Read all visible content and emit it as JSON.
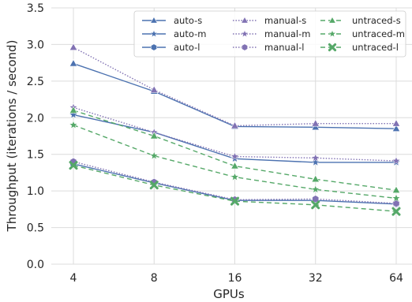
{
  "chart_data": {
    "type": "line",
    "title": "",
    "xlabel": "GPUs",
    "ylabel": "Throughput (iterations / second)",
    "categories": [
      "4",
      "8",
      "16",
      "32",
      "64"
    ],
    "ylim": [
      0.0,
      3.5
    ],
    "yticks": [
      "0.0",
      "0.5",
      "1.0",
      "1.5",
      "2.0",
      "2.5",
      "3.0",
      "3.5"
    ],
    "grid": true,
    "legend_position": "top-right",
    "legend_columns": 3,
    "series": [
      {
        "name": "auto-s",
        "values": [
          2.74,
          2.36,
          1.88,
          1.87,
          1.85
        ],
        "color": "#4c72b0",
        "dash": "solid",
        "marker": "triangle"
      },
      {
        "name": "auto-m",
        "values": [
          2.04,
          1.8,
          1.44,
          1.39,
          1.39
        ],
        "color": "#4c72b0",
        "dash": "solid",
        "marker": "star"
      },
      {
        "name": "auto-l",
        "values": [
          1.37,
          1.11,
          0.87,
          0.87,
          0.82
        ],
        "color": "#4c72b0",
        "dash": "solid",
        "marker": "hexagon"
      },
      {
        "name": "manual-s",
        "values": [
          2.96,
          2.38,
          1.89,
          1.92,
          1.92
        ],
        "color": "#8172b3",
        "dash": "dotted",
        "marker": "triangle"
      },
      {
        "name": "manual-m",
        "values": [
          2.14,
          1.8,
          1.47,
          1.45,
          1.41
        ],
        "color": "#8172b3",
        "dash": "dotted",
        "marker": "star"
      },
      {
        "name": "manual-l",
        "values": [
          1.4,
          1.12,
          0.88,
          0.89,
          0.83
        ],
        "color": "#8172b3",
        "dash": "dotted",
        "marker": "hexagon"
      },
      {
        "name": "untraced-s",
        "values": [
          2.1,
          1.75,
          1.34,
          1.16,
          1.01
        ],
        "color": "#55a868",
        "dash": "dashed",
        "marker": "triangle"
      },
      {
        "name": "untraced-m",
        "values": [
          1.9,
          1.48,
          1.19,
          1.02,
          0.9
        ],
        "color": "#55a868",
        "dash": "dashed",
        "marker": "star"
      },
      {
        "name": "untraced-l",
        "values": [
          1.35,
          1.08,
          0.86,
          0.81,
          0.72
        ],
        "color": "#55a868",
        "dash": "dashed",
        "marker": "x"
      }
    ]
  }
}
